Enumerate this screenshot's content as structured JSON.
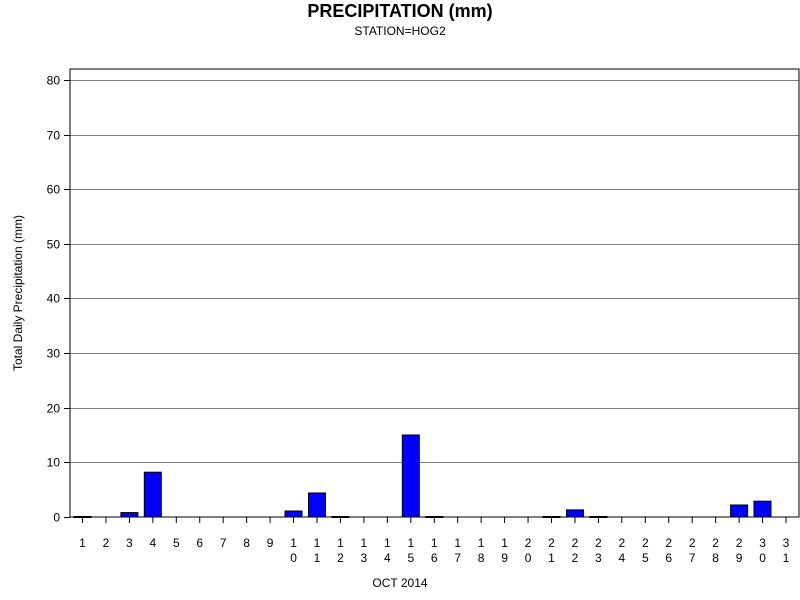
{
  "chart_data": {
    "type": "bar",
    "title": "PRECIPITATION (mm)",
    "subtitle": "STATION=HOG2",
    "xlabel": "OCT 2014",
    "ylabel": "Total Daily Precipitation (mm)",
    "ylim": [
      0,
      82
    ],
    "yticks": [
      0,
      10,
      20,
      30,
      40,
      50,
      60,
      70,
      80
    ],
    "grid": true,
    "categories": [
      "1",
      "2",
      "3",
      "4",
      "5",
      "6",
      "7",
      "8",
      "9",
      "10",
      "11",
      "12",
      "13",
      "14",
      "15",
      "16",
      "17",
      "18",
      "19",
      "20",
      "21",
      "22",
      "23",
      "24",
      "25",
      "26",
      "27",
      "28",
      "29",
      "30",
      "31"
    ],
    "values": [
      0.1,
      0,
      0.8,
      8.2,
      0,
      0,
      0,
      0,
      0,
      1.1,
      4.4,
      0.1,
      0,
      0,
      15.0,
      0.1,
      0,
      0,
      0,
      0,
      0.1,
      1.3,
      0.1,
      0,
      0,
      0,
      0,
      0,
      2.2,
      2.9,
      0
    ],
    "bar_color": "#0000ff"
  }
}
